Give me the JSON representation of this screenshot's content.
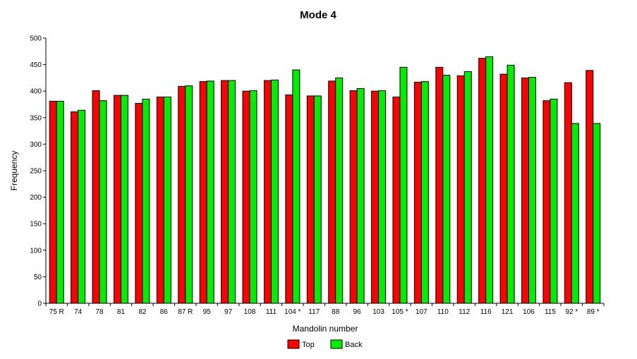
{
  "chart_data": {
    "type": "bar",
    "title": "Mode 4",
    "xlabel": "Mandolin number",
    "ylabel": "Frequency",
    "ylim": [
      0,
      500
    ],
    "yticks": [
      0,
      50,
      100,
      150,
      200,
      250,
      300,
      350,
      400,
      450,
      500
    ],
    "grid": false,
    "legend_position": "bottom-center",
    "categories": [
      "75 R",
      "74",
      "78",
      "81",
      "82",
      "86",
      "87 R",
      "95",
      "97",
      "108",
      "111",
      "104 *",
      "117",
      "88",
      "96",
      "103",
      "105 *",
      "107",
      "110",
      "112",
      "116",
      "121",
      "106",
      "115",
      "92 *",
      "89 *"
    ],
    "series": [
      {
        "name": "Top",
        "color": "#ff0000",
        "values": [
          381,
          361,
          401,
          392,
          377,
          389,
          409,
          418,
          420,
          400,
          420,
          393,
          391,
          419,
          401,
          400,
          389,
          417,
          445,
          429,
          462,
          432,
          425,
          382,
          416,
          439
        ]
      },
      {
        "name": "Back",
        "color": "#00ee00",
        "values": [
          381,
          364,
          382,
          392,
          385,
          389,
          410,
          419,
          420,
          401,
          421,
          440,
          391,
          425,
          405,
          401,
          445,
          418,
          430,
          437,
          465,
          449,
          426,
          385,
          339,
          339
        ]
      }
    ]
  }
}
